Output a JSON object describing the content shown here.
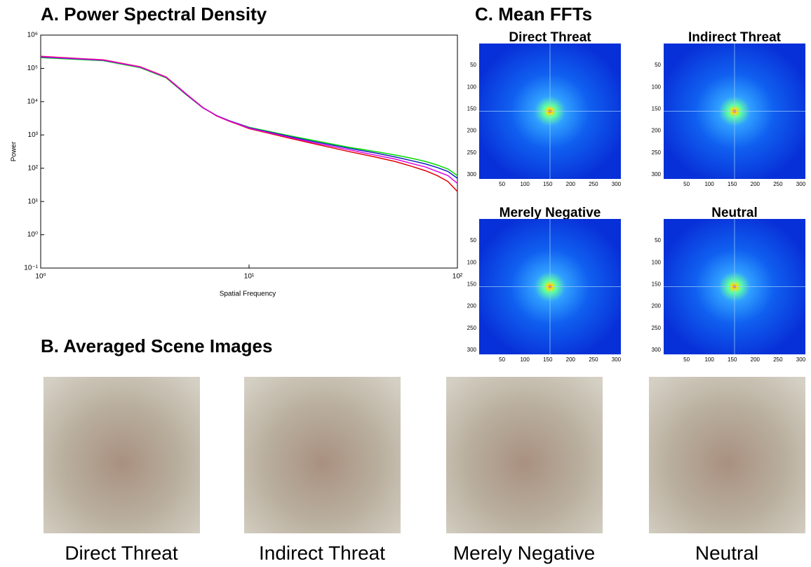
{
  "chart_data": {
    "type": "line",
    "title": "A. Power Spectral Density",
    "xlabel": "Spatial Frequency",
    "ylabel": "Power",
    "xscale": "log",
    "yscale": "log",
    "x": [
      1,
      2,
      3,
      4,
      5,
      6,
      7,
      8,
      9,
      10,
      15,
      20,
      30,
      40,
      50,
      60,
      70,
      80,
      90,
      100
    ],
    "series": [
      {
        "color": "#00dd00",
        "values": [
          210000,
          170000,
          105000,
          52000,
          16000,
          6500,
          3800,
          2700,
          2100,
          1700,
          1000,
          700,
          430,
          320,
          250,
          200,
          160,
          125,
          95,
          60
        ]
      },
      {
        "color": "#1020c0",
        "values": [
          220000,
          175000,
          110000,
          54000,
          16500,
          6600,
          3800,
          2700,
          2100,
          1650,
          950,
          650,
          400,
          290,
          220,
          170,
          135,
          105,
          80,
          50
        ]
      },
      {
        "color": "#e00000",
        "values": [
          230000,
          180000,
          112000,
          55000,
          17000,
          6700,
          3700,
          2600,
          2000,
          1550,
          850,
          560,
          320,
          220,
          160,
          115,
          85,
          60,
          40,
          20
        ]
      },
      {
        "color": "#e000e0",
        "values": [
          225000,
          178000,
          110000,
          54000,
          16800,
          6600,
          3750,
          2650,
          2050,
          1600,
          900,
          600,
          360,
          250,
          190,
          140,
          110,
          80,
          60,
          35
        ]
      }
    ],
    "xlim": [
      1,
      100
    ],
    "xticks": [
      {
        "value": 1,
        "label": "10⁰"
      },
      {
        "value": 10,
        "label": "10¹"
      },
      {
        "value": 100,
        "label": "10²"
      }
    ],
    "ylim": [
      0.1,
      1000000
    ],
    "yticks": [
      {
        "value": 0.1,
        "label": "10⁻¹"
      },
      {
        "value": 1,
        "label": "10⁰"
      },
      {
        "value": 10,
        "label": "10¹"
      },
      {
        "value": 100,
        "label": "10²"
      },
      {
        "value": 1000,
        "label": "10³"
      },
      {
        "value": 10000,
        "label": "10⁴"
      },
      {
        "value": 100000,
        "label": "10⁵"
      },
      {
        "value": 1000000,
        "label": "10⁶"
      }
    ]
  },
  "fft": {
    "title": "C. Mean FFTs",
    "panels": [
      "Direct Threat",
      "Indirect Threat",
      "Merely Negative",
      "Neutral"
    ],
    "ticks": [
      50,
      100,
      150,
      200,
      250,
      300
    ],
    "lim": [
      0,
      310
    ]
  },
  "scenes": {
    "title": "B. Averaged Scene Images",
    "labels": [
      "Direct Threat",
      "Indirect Threat",
      "Merely Negative",
      "Neutral"
    ]
  }
}
